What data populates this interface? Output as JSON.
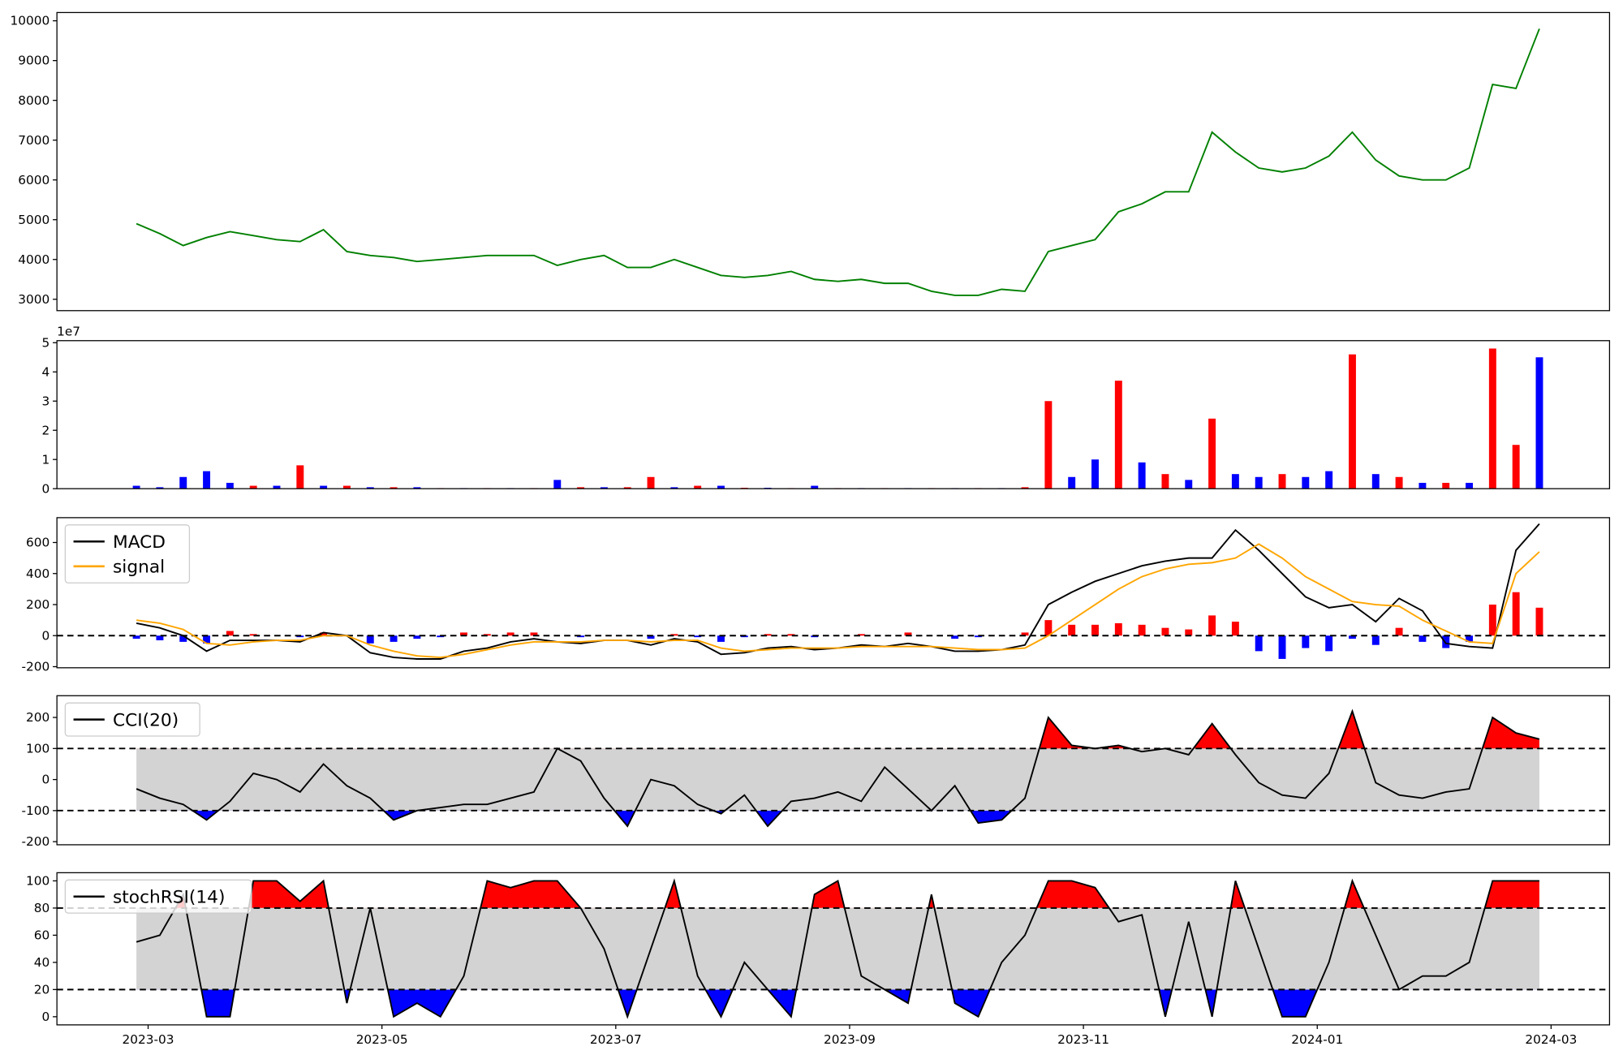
{
  "chart_data": [
    {
      "type": "line",
      "color": "green",
      "x": [
        -0.1,
        0.1,
        0.3,
        0.5,
        0.7,
        0.9,
        1.1,
        1.3,
        1.5,
        1.7,
        1.9,
        2.1,
        2.3,
        2.5,
        2.7,
        2.9,
        3.1,
        3.3,
        3.5,
        3.7,
        3.9,
        4.1,
        4.3,
        4.5,
        4.7,
        4.9,
        5.1,
        5.3,
        5.5,
        5.7,
        5.9,
        6.1,
        6.3,
        6.5,
        6.7,
        6.9,
        7.1,
        7.3,
        7.5,
        7.7,
        7.9,
        8.1,
        8.3,
        8.5,
        8.7,
        8.9,
        9.1,
        9.3,
        9.5,
        9.7,
        9.9,
        10.1,
        10.3,
        10.5,
        10.7,
        10.9,
        11.1,
        11.3,
        11.5,
        11.7,
        11.9
      ],
      "values": [
        4900,
        4650,
        4350,
        4550,
        4700,
        4600,
        4500,
        4450,
        4750,
        4200,
        4100,
        4050,
        3950,
        4000,
        4050,
        4100,
        4100,
        4100,
        3850,
        4000,
        4100,
        3800,
        3800,
        4000,
        3800,
        3600,
        3550,
        3600,
        3700,
        3500,
        3450,
        3500,
        3400,
        3400,
        3200,
        3100,
        3100,
        3250,
        3200,
        4200,
        4350,
        4500,
        5200,
        5400,
        5700,
        5700,
        7200,
        6700,
        6300,
        6200,
        6300,
        6600,
        7200,
        6500,
        6100,
        6000,
        6000,
        6300,
        8400,
        8300,
        9800
      ],
      "xlim": [
        -0.78,
        12.5
      ],
      "ylim": [
        2714,
        10208
      ],
      "yticks": [
        3000,
        4000,
        5000,
        6000,
        7000,
        8000,
        9000,
        10000
      ]
    },
    {
      "type": "bar",
      "offset_label": "1e7",
      "x": [
        -0.1,
        0.1,
        0.3,
        0.5,
        0.7,
        0.9,
        1.1,
        1.3,
        1.5,
        1.7,
        1.9,
        2.1,
        2.3,
        2.5,
        2.7,
        2.9,
        3.1,
        3.3,
        3.5,
        3.7,
        3.9,
        4.1,
        4.3,
        4.5,
        4.7,
        4.9,
        5.1,
        5.3,
        5.5,
        5.7,
        5.9,
        6.1,
        6.3,
        6.5,
        6.7,
        6.9,
        7.1,
        7.3,
        7.5,
        7.7,
        7.9,
        8.1,
        8.3,
        8.5,
        8.7,
        8.9,
        9.1,
        9.3,
        9.5,
        9.7,
        9.9,
        10.1,
        10.3,
        10.5,
        10.7,
        10.9,
        11.1,
        11.3,
        11.5,
        11.7,
        11.9
      ],
      "values": [
        0.1,
        0.05,
        0.4,
        0.6,
        0.2,
        0.1,
        0.1,
        0.8,
        0.1,
        0.1,
        0.05,
        0.05,
        0.05,
        0.02,
        0.02,
        0.02,
        0.02,
        0.02,
        0.3,
        0.05,
        0.05,
        0.05,
        0.4,
        0.05,
        0.1,
        0.1,
        0.03,
        0.03,
        0.02,
        0.1,
        0.02,
        0.02,
        0.02,
        0.02,
        0.02,
        0.02,
        0.02,
        0.02,
        0.05,
        3.0,
        0.4,
        1.0,
        3.7,
        0.9,
        0.5,
        0.3,
        2.4,
        0.5,
        0.4,
        0.5,
        0.4,
        0.6,
        4.6,
        0.5,
        0.4,
        0.2,
        0.2,
        0.2,
        4.8,
        1.5,
        4.5
      ],
      "colors": [
        "blue",
        "blue",
        "blue",
        "blue",
        "blue",
        "red",
        "blue",
        "red",
        "blue",
        "red",
        "blue",
        "red",
        "blue",
        "red",
        "blue",
        "red",
        "blue",
        "red",
        "blue",
        "red",
        "blue",
        "red",
        "red",
        "blue",
        "red",
        "blue",
        "red",
        "blue",
        "red",
        "blue",
        "red",
        "blue",
        "red",
        "blue",
        "red",
        "blue",
        "red",
        "blue",
        "red",
        "red",
        "blue",
        "blue",
        "red",
        "blue",
        "red",
        "blue",
        "red",
        "blue",
        "blue",
        "red",
        "blue",
        "blue",
        "red",
        "blue",
        "red",
        "blue",
        "red",
        "blue",
        "red",
        "red",
        "blue"
      ],
      "xlim": [
        -0.78,
        12.5
      ],
      "ylim": [
        0,
        5.07
      ],
      "yticks": [
        0,
        1,
        2,
        3,
        4,
        5
      ]
    },
    {
      "type": "macd",
      "x": [
        -0.1,
        0.1,
        0.3,
        0.5,
        0.7,
        0.9,
        1.1,
        1.3,
        1.5,
        1.7,
        1.9,
        2.1,
        2.3,
        2.5,
        2.7,
        2.9,
        3.1,
        3.3,
        3.5,
        3.7,
        3.9,
        4.1,
        4.3,
        4.5,
        4.7,
        4.9,
        5.1,
        5.3,
        5.5,
        5.7,
        5.9,
        6.1,
        6.3,
        6.5,
        6.7,
        6.9,
        7.1,
        7.3,
        7.5,
        7.7,
        7.9,
        8.1,
        8.3,
        8.5,
        8.7,
        8.9,
        9.1,
        9.3,
        9.5,
        9.7,
        9.9,
        10.1,
        10.3,
        10.5,
        10.7,
        10.9,
        11.1,
        11.3,
        11.5,
        11.7,
        11.9
      ],
      "series": [
        {
          "name": "MACD",
          "color": "black",
          "values": [
            80,
            50,
            0,
            -100,
            -30,
            -30,
            -30,
            -40,
            20,
            0,
            -110,
            -140,
            -150,
            -150,
            -100,
            -80,
            -40,
            -20,
            -40,
            -50,
            -30,
            -30,
            -60,
            -20,
            -40,
            -120,
            -110,
            -80,
            -70,
            -90,
            -80,
            -60,
            -70,
            -50,
            -70,
            -100,
            -100,
            -90,
            -60,
            200,
            280,
            350,
            400,
            450,
            480,
            500,
            500,
            680,
            550,
            400,
            250,
            180,
            200,
            90,
            240,
            160,
            -50,
            -70,
            -80,
            550,
            720
          ]
        },
        {
          "name": "signal",
          "color": "orange",
          "values": [
            100,
            80,
            40,
            -50,
            -60,
            -40,
            -30,
            -30,
            0,
            0,
            -60,
            -100,
            -130,
            -140,
            -120,
            -90,
            -60,
            -40,
            -40,
            -40,
            -30,
            -30,
            -40,
            -30,
            -30,
            -80,
            -100,
            -90,
            -80,
            -80,
            -80,
            -70,
            -70,
            -70,
            -70,
            -80,
            -90,
            -90,
            -80,
            0,
            100,
            200,
            300,
            380,
            430,
            460,
            470,
            500,
            590,
            500,
            380,
            300,
            220,
            200,
            190,
            100,
            30,
            -40,
            -50,
            400,
            540
          ]
        }
      ],
      "histogram": {
        "values": [
          -20,
          -30,
          -40,
          -50,
          30,
          10,
          0,
          -10,
          20,
          0,
          -50,
          -40,
          -20,
          -10,
          20,
          10,
          20,
          20,
          0,
          -10,
          0,
          0,
          -20,
          10,
          -10,
          -40,
          -10,
          10,
          10,
          -10,
          0,
          10,
          0,
          20,
          0,
          -20,
          -10,
          0,
          20,
          100,
          70,
          70,
          80,
          70,
          50,
          40,
          130,
          90,
          -100,
          -150,
          -80,
          -100,
          -20,
          -60,
          50,
          -40,
          -80,
          -40,
          200,
          280,
          180
        ],
        "pos_color": "red",
        "neg_color": "blue"
      },
      "hline": 0,
      "xlim": [
        -0.78,
        12.5
      ],
      "ylim": [
        -207,
        760
      ],
      "yticks": [
        -200,
        0,
        200,
        400,
        600
      ]
    },
    {
      "type": "oscillator",
      "x": [
        -0.1,
        0.1,
        0.3,
        0.5,
        0.7,
        0.9,
        1.1,
        1.3,
        1.5,
        1.7,
        1.9,
        2.1,
        2.3,
        2.5,
        2.7,
        2.9,
        3.1,
        3.3,
        3.5,
        3.7,
        3.9,
        4.1,
        4.3,
        4.5,
        4.7,
        4.9,
        5.1,
        5.3,
        5.5,
        5.7,
        5.9,
        6.1,
        6.3,
        6.5,
        6.7,
        6.9,
        7.1,
        7.3,
        7.5,
        7.7,
        7.9,
        8.1,
        8.3,
        8.5,
        8.7,
        8.9,
        9.1,
        9.3,
        9.5,
        9.7,
        9.9,
        10.1,
        10.3,
        10.5,
        10.7,
        10.9,
        11.1,
        11.3,
        11.5,
        11.7,
        11.9
      ],
      "series": [
        {
          "name": "CCI(20)",
          "color": "black",
          "values": [
            -30,
            -60,
            -80,
            -130,
            -70,
            20,
            0,
            -40,
            50,
            -20,
            -60,
            -130,
            -100,
            -90,
            -80,
            -80,
            -60,
            -40,
            100,
            60,
            -60,
            -150,
            0,
            -20,
            -80,
            -110,
            -50,
            -150,
            -70,
            -60,
            -40,
            -70,
            40,
            -30,
            -100,
            -20,
            -140,
            -130,
            -60,
            200,
            110,
            100,
            110,
            90,
            100,
            80,
            180,
            80,
            -10,
            -50,
            -60,
            20,
            220,
            -10,
            -50,
            -60,
            -40,
            -30,
            200,
            150,
            130
          ]
        }
      ],
      "bands": [
        -100,
        100
      ],
      "band_color": "lightgray",
      "upper_fill": "red",
      "lower_fill": "blue",
      "xlim": [
        -0.78,
        12.5
      ],
      "ylim": [
        -210,
        270
      ],
      "yticks": [
        -200,
        -100,
        0,
        100,
        200
      ]
    },
    {
      "type": "oscillator",
      "x": [
        -0.1,
        0.1,
        0.3,
        0.5,
        0.7,
        0.9,
        1.1,
        1.3,
        1.5,
        1.7,
        1.9,
        2.1,
        2.3,
        2.5,
        2.7,
        2.9,
        3.1,
        3.3,
        3.5,
        3.7,
        3.9,
        4.1,
        4.3,
        4.5,
        4.7,
        4.9,
        5.1,
        5.3,
        5.5,
        5.7,
        5.9,
        6.1,
        6.3,
        6.5,
        6.7,
        6.9,
        7.1,
        7.3,
        7.5,
        7.7,
        7.9,
        8.1,
        8.3,
        8.5,
        8.7,
        8.9,
        9.1,
        9.3,
        9.5,
        9.7,
        9.9,
        10.1,
        10.3,
        10.5,
        10.7,
        10.9,
        11.1,
        11.3,
        11.5,
        11.7,
        11.9
      ],
      "series": [
        {
          "name": "stochRSI(14)",
          "color": "black",
          "values": [
            55,
            60,
            90,
            0,
            0,
            100,
            100,
            85,
            100,
            10,
            80,
            0,
            10,
            0,
            30,
            100,
            95,
            100,
            100,
            80,
            50,
            0,
            50,
            100,
            30,
            0,
            40,
            20,
            0,
            90,
            100,
            30,
            20,
            10,
            90,
            10,
            0,
            40,
            60,
            100,
            100,
            95,
            70,
            75,
            0,
            70,
            0,
            100,
            50,
            0,
            0,
            40,
            100,
            60,
            20,
            30,
            30,
            40,
            100,
            100,
            100
          ]
        }
      ],
      "bands": [
        20,
        80
      ],
      "band_color": "lightgray",
      "upper_fill": "red",
      "lower_fill": "blue",
      "xlim": [
        -0.78,
        12.5
      ],
      "ylim": [
        -6,
        106
      ],
      "yticks": [
        0,
        20,
        40,
        60,
        80,
        100
      ],
      "xticks": [
        {
          "value": 0,
          "label": "2023-03"
        },
        {
          "value": 2,
          "label": "2023-05"
        },
        {
          "value": 4,
          "label": "2023-07"
        },
        {
          "value": 6,
          "label": "2023-09"
        },
        {
          "value": 8,
          "label": "2023-11"
        },
        {
          "value": 10,
          "label": "2024-01"
        },
        {
          "value": 12,
          "label": "2024-03"
        }
      ]
    }
  ]
}
